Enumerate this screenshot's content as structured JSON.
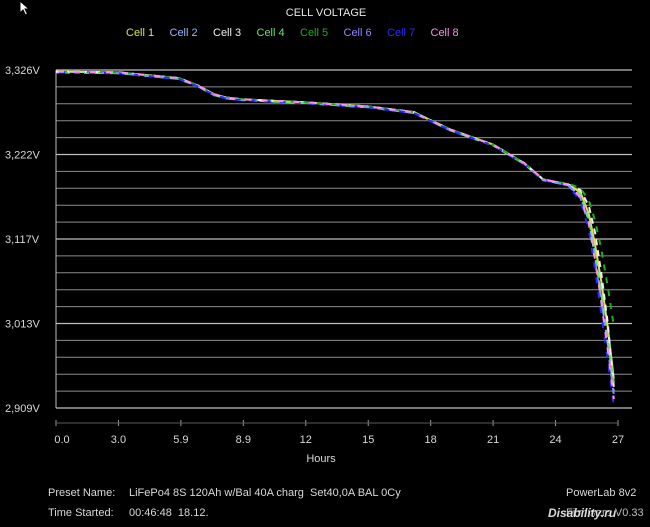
{
  "cursor_icon": "arrow-cursor-icon",
  "chart_data": {
    "type": "line",
    "title": "CELL VOLTAGE",
    "xlabel": "Hours",
    "ylabel": "",
    "x_ticks": [
      "0.0",
      "3.0",
      "5.9",
      "8.9",
      "12",
      "15",
      "18",
      "21",
      "24",
      "27"
    ],
    "y_ticks": [
      "3,326V",
      "3,222V",
      "3,117V",
      "3,013V",
      "2,909V"
    ],
    "xlim": [
      0,
      27
    ],
    "ylim": [
      2.909,
      3.326
    ],
    "grid": true,
    "legend_position": "top",
    "series": [
      {
        "name": "Cell 1",
        "color": "#d8e84a",
        "end_voltage": 2.945,
        "x": [
          0,
          3,
          5.9,
          6.8,
          7.6,
          8.2,
          8.9,
          12,
          15,
          17.2,
          18,
          19,
          21,
          22.5,
          23.4,
          24,
          24.6,
          25.2,
          25.6,
          25.9,
          26.2,
          26.5,
          26.8
        ],
        "y": [
          3.324,
          3.323,
          3.316,
          3.307,
          3.296,
          3.292,
          3.29,
          3.286,
          3.281,
          3.274,
          3.264,
          3.252,
          3.234,
          3.211,
          3.191,
          3.188,
          3.185,
          3.175,
          3.148,
          3.11,
          3.065,
          3.01,
          2.945
        ]
      },
      {
        "name": "Cell 2",
        "color": "#9fb5ff",
        "end_voltage": 2.93,
        "x": [
          0,
          3,
          5.9,
          6.8,
          7.6,
          8.2,
          8.9,
          12,
          15,
          17.2,
          18,
          19,
          21,
          22.5,
          23.4,
          24,
          24.6,
          25.2,
          25.6,
          25.9,
          26.2,
          26.5,
          26.8
        ],
        "y": [
          3.323,
          3.322,
          3.315,
          3.306,
          3.295,
          3.291,
          3.289,
          3.285,
          3.28,
          3.273,
          3.263,
          3.251,
          3.233,
          3.21,
          3.19,
          3.187,
          3.184,
          3.17,
          3.14,
          3.095,
          3.045,
          2.99,
          2.93
        ]
      },
      {
        "name": "Cell 3",
        "color": "#f0f0f0",
        "end_voltage": 2.935,
        "x": [
          0,
          3,
          5.9,
          6.8,
          7.6,
          8.2,
          8.9,
          12,
          15,
          17.2,
          18,
          19,
          21,
          22.5,
          23.4,
          24,
          24.6,
          25.2,
          25.6,
          25.9,
          26.2,
          26.5,
          26.8
        ],
        "y": [
          3.324,
          3.323,
          3.316,
          3.307,
          3.296,
          3.292,
          3.29,
          3.286,
          3.281,
          3.274,
          3.264,
          3.252,
          3.234,
          3.211,
          3.191,
          3.188,
          3.185,
          3.178,
          3.158,
          3.125,
          3.075,
          3.015,
          2.935
        ]
      },
      {
        "name": "Cell 4",
        "color": "#6ee06e",
        "end_voltage": 2.94,
        "x": [
          0,
          3,
          5.9,
          6.8,
          7.6,
          8.2,
          8.9,
          12,
          15,
          17.2,
          18,
          19,
          21,
          22.5,
          23.4,
          24,
          24.6,
          25.2,
          25.6,
          25.9,
          26.2,
          26.5,
          26.8
        ],
        "y": [
          3.323,
          3.322,
          3.315,
          3.306,
          3.295,
          3.291,
          3.289,
          3.285,
          3.28,
          3.273,
          3.263,
          3.251,
          3.233,
          3.21,
          3.19,
          3.187,
          3.184,
          3.172,
          3.142,
          3.1,
          3.05,
          2.995,
          2.94
        ]
      },
      {
        "name": "Cell 5",
        "color": "#1faa1f",
        "end_voltage": 3.01,
        "x": [
          0,
          3,
          5.9,
          6.8,
          7.6,
          8.2,
          8.9,
          12,
          15,
          17.2,
          18,
          19,
          21,
          22.5,
          23.4,
          24,
          24.6,
          25.2,
          25.6,
          25.9,
          26.2,
          26.5,
          26.8
        ],
        "y": [
          3.324,
          3.323,
          3.316,
          3.307,
          3.296,
          3.292,
          3.29,
          3.286,
          3.281,
          3.274,
          3.264,
          3.252,
          3.234,
          3.211,
          3.191,
          3.188,
          3.186,
          3.18,
          3.165,
          3.14,
          3.105,
          3.06,
          3.01
        ]
      },
      {
        "name": "Cell 6",
        "color": "#8a8aff",
        "end_voltage": 2.925,
        "x": [
          0,
          3,
          5.9,
          6.8,
          7.6,
          8.2,
          8.9,
          12,
          15,
          17.2,
          18,
          19,
          21,
          22.5,
          23.4,
          24,
          24.6,
          25.2,
          25.6,
          25.9,
          26.2,
          26.5,
          26.8
        ],
        "y": [
          3.323,
          3.322,
          3.315,
          3.306,
          3.295,
          3.291,
          3.289,
          3.285,
          3.28,
          3.273,
          3.263,
          3.251,
          3.233,
          3.21,
          3.19,
          3.187,
          3.184,
          3.168,
          3.135,
          3.09,
          3.04,
          2.985,
          2.925
        ]
      },
      {
        "name": "Cell 7",
        "color": "#2a2aff",
        "end_voltage": 2.912,
        "x": [
          0,
          3,
          5.9,
          6.8,
          7.6,
          8.2,
          8.9,
          12,
          15,
          17.2,
          18,
          19,
          21,
          22.5,
          23.4,
          24,
          24.6,
          25.2,
          25.6,
          25.9,
          26.2,
          26.5,
          26.8
        ],
        "y": [
          3.323,
          3.322,
          3.315,
          3.306,
          3.295,
          3.291,
          3.289,
          3.285,
          3.28,
          3.273,
          3.263,
          3.251,
          3.233,
          3.21,
          3.19,
          3.187,
          3.183,
          3.165,
          3.128,
          3.08,
          3.025,
          2.97,
          2.912
        ]
      },
      {
        "name": "Cell 8",
        "color": "#ff90e8",
        "end_voltage": 2.92,
        "x": [
          0,
          3,
          5.9,
          6.8,
          7.6,
          8.2,
          8.9,
          12,
          15,
          17.2,
          18,
          19,
          21,
          22.5,
          23.4,
          24,
          24.6,
          25.2,
          25.6,
          25.9,
          26.2,
          26.5,
          26.8
        ],
        "y": [
          3.324,
          3.323,
          3.316,
          3.307,
          3.296,
          3.292,
          3.29,
          3.286,
          3.281,
          3.274,
          3.264,
          3.252,
          3.234,
          3.211,
          3.191,
          3.188,
          3.184,
          3.169,
          3.137,
          3.092,
          3.04,
          2.982,
          2.92
        ]
      }
    ]
  },
  "footer": {
    "preset_label": "Preset Name:",
    "preset_value": "LiFePo4 8S 120Ah w/Bal 40A charg  Set40,0A BAL 0Cy",
    "time_label": "Time Started:",
    "time_value": "00:46:48  18.12.",
    "device": "PowerLab 8v2",
    "version": "Firmware V0.33"
  },
  "watermark": "Disability.ru"
}
